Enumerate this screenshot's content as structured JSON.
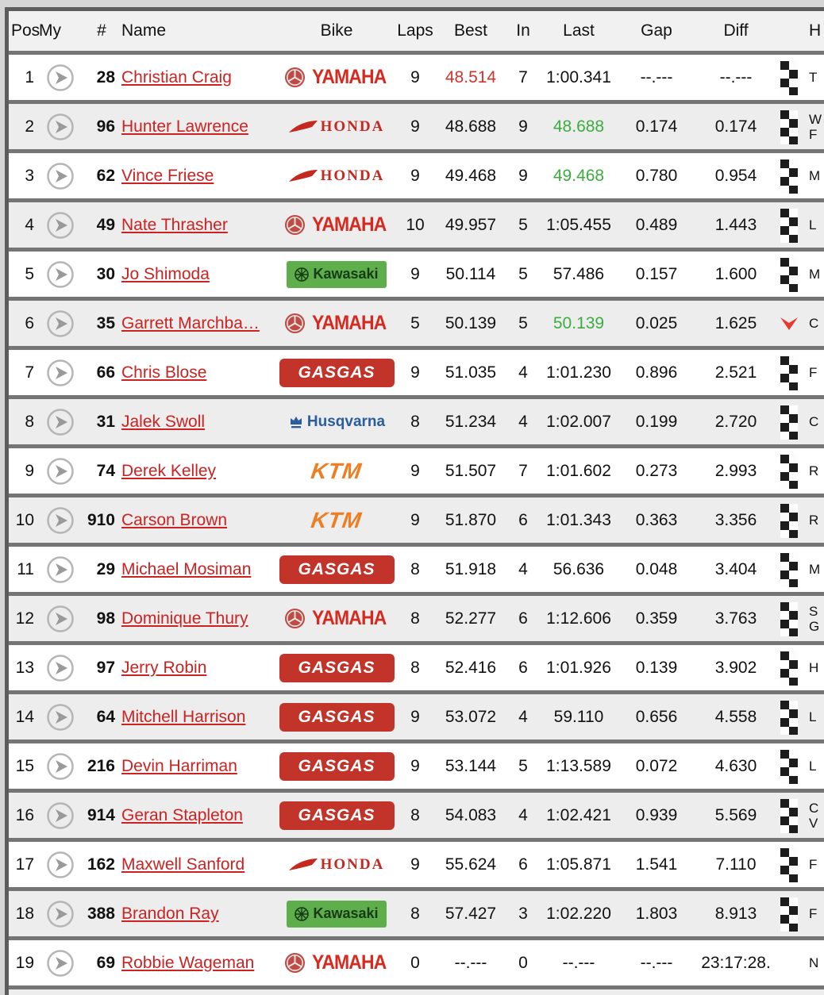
{
  "header": {
    "pos": "Pos",
    "my": "My",
    "num": "#",
    "name": "Name",
    "bike": "Bike",
    "laps": "Laps",
    "best": "Best",
    "in": "In",
    "last": "Last",
    "gap": "Gap",
    "diff": "Diff",
    "home": "H"
  },
  "brands": {
    "yamaha": {
      "label": "YAMAHA",
      "color": "#d62a20"
    },
    "honda": {
      "label": "HONDA",
      "color": "#c5281f"
    },
    "kawasaki": {
      "label": "Kawasaki",
      "color": "#5fae4c"
    },
    "gasgas": {
      "label": "GASGAS",
      "color": "#c2342a"
    },
    "husqvarna": {
      "label": "Husqvarna",
      "color": "#2b5c9e"
    },
    "ktm": {
      "label": "KTM",
      "color": "#ef7d23"
    }
  },
  "colors": {
    "link_red": "#cc2222",
    "best_overall_red": "#d0342c",
    "improved_green": "#3dac40",
    "row_alt": "#ededed",
    "separator": "#757575"
  },
  "icons": {
    "my_button": "arrow-right-icon",
    "finished": "checkered-flag-icon",
    "position_drop": "chevron-down-red-icon"
  },
  "table": {
    "rows": [
      {
        "pos": "1",
        "num": "28",
        "name": "Christian Craig",
        "bike": "yamaha",
        "laps": "9",
        "best": "48.514",
        "best_style": "red",
        "in": "7",
        "last": "1:00.341",
        "last_style": "",
        "gap": "--.---",
        "diff": "--.---",
        "flag": "checkered",
        "home": [
          "T"
        ]
      },
      {
        "pos": "2",
        "num": "96",
        "name": "Hunter Lawrence",
        "bike": "honda",
        "laps": "9",
        "best": "48.688",
        "best_style": "",
        "in": "9",
        "last": "48.688",
        "last_style": "green",
        "gap": "0.174",
        "diff": "0.174",
        "flag": "checkered",
        "home": [
          "W",
          "F"
        ]
      },
      {
        "pos": "3",
        "num": "62",
        "name": "Vince Friese",
        "bike": "honda",
        "laps": "9",
        "best": "49.468",
        "best_style": "",
        "in": "9",
        "last": "49.468",
        "last_style": "green",
        "gap": "0.780",
        "diff": "0.954",
        "flag": "checkered",
        "home": [
          "M"
        ]
      },
      {
        "pos": "4",
        "num": "49",
        "name": "Nate Thrasher",
        "bike": "yamaha",
        "laps": "10",
        "best": "49.957",
        "best_style": "",
        "in": "5",
        "last": "1:05.455",
        "last_style": "",
        "gap": "0.489",
        "diff": "1.443",
        "flag": "checkered",
        "home": [
          "L"
        ]
      },
      {
        "pos": "5",
        "num": "30",
        "name": "Jo Shimoda",
        "bike": "kawasaki",
        "laps": "9",
        "best": "50.114",
        "best_style": "",
        "in": "5",
        "last": "57.486",
        "last_style": "",
        "gap": "0.157",
        "diff": "1.600",
        "flag": "checkered",
        "home": [
          "M"
        ]
      },
      {
        "pos": "6",
        "num": "35",
        "name": "Garrett Marchba…",
        "bike": "yamaha",
        "laps": "5",
        "best": "50.139",
        "best_style": "",
        "in": "5",
        "last": "50.139",
        "last_style": "green",
        "gap": "0.025",
        "diff": "1.625",
        "flag": "arrow",
        "home": [
          "C"
        ]
      },
      {
        "pos": "7",
        "num": "66",
        "name": "Chris Blose",
        "bike": "gasgas",
        "laps": "9",
        "best": "51.035",
        "best_style": "",
        "in": "4",
        "last": "1:01.230",
        "last_style": "",
        "gap": "0.896",
        "diff": "2.521",
        "flag": "checkered",
        "home": [
          "F"
        ]
      },
      {
        "pos": "8",
        "num": "31",
        "name": "Jalek Swoll",
        "bike": "husqvarna",
        "laps": "8",
        "best": "51.234",
        "best_style": "",
        "in": "4",
        "last": "1:02.007",
        "last_style": "",
        "gap": "0.199",
        "diff": "2.720",
        "flag": "checkered",
        "home": [
          "C"
        ]
      },
      {
        "pos": "9",
        "num": "74",
        "name": "Derek Kelley",
        "bike": "ktm",
        "laps": "9",
        "best": "51.507",
        "best_style": "",
        "in": "7",
        "last": "1:01.602",
        "last_style": "",
        "gap": "0.273",
        "diff": "2.993",
        "flag": "checkered",
        "home": [
          "R"
        ]
      },
      {
        "pos": "10",
        "num": "910",
        "name": "Carson Brown",
        "bike": "ktm",
        "laps": "9",
        "best": "51.870",
        "best_style": "",
        "in": "6",
        "last": "1:01.343",
        "last_style": "",
        "gap": "0.363",
        "diff": "3.356",
        "flag": "checkered",
        "home": [
          "R"
        ]
      },
      {
        "pos": "11",
        "num": "29",
        "name": "Michael Mosiman",
        "bike": "gasgas",
        "laps": "8",
        "best": "51.918",
        "best_style": "",
        "in": "4",
        "last": "56.636",
        "last_style": "",
        "gap": "0.048",
        "diff": "3.404",
        "flag": "checkered",
        "home": [
          "M"
        ]
      },
      {
        "pos": "12",
        "num": "98",
        "name": "Dominique Thury",
        "bike": "yamaha",
        "laps": "8",
        "best": "52.277",
        "best_style": "",
        "in": "6",
        "last": "1:12.606",
        "last_style": "",
        "gap": "0.359",
        "diff": "3.763",
        "flag": "checkered",
        "home": [
          "S",
          "G"
        ]
      },
      {
        "pos": "13",
        "num": "97",
        "name": "Jerry Robin",
        "bike": "gasgas",
        "laps": "8",
        "best": "52.416",
        "best_style": "",
        "in": "6",
        "last": "1:01.926",
        "last_style": "",
        "gap": "0.139",
        "diff": "3.902",
        "flag": "checkered",
        "home": [
          "H"
        ]
      },
      {
        "pos": "14",
        "num": "64",
        "name": "Mitchell Harrison",
        "bike": "gasgas",
        "laps": "9",
        "best": "53.072",
        "best_style": "",
        "in": "4",
        "last": "59.110",
        "last_style": "",
        "gap": "0.656",
        "diff": "4.558",
        "flag": "checkered",
        "home": [
          "L"
        ]
      },
      {
        "pos": "15",
        "num": "216",
        "name": "Devin Harriman",
        "bike": "gasgas",
        "laps": "9",
        "best": "53.144",
        "best_style": "",
        "in": "5",
        "last": "1:13.589",
        "last_style": "",
        "gap": "0.072",
        "diff": "4.630",
        "flag": "checkered",
        "home": [
          "L"
        ]
      },
      {
        "pos": "16",
        "num": "914",
        "name": "Geran Stapleton",
        "bike": "gasgas",
        "laps": "8",
        "best": "54.083",
        "best_style": "",
        "in": "4",
        "last": "1:02.421",
        "last_style": "",
        "gap": "0.939",
        "diff": "5.569",
        "flag": "checkered",
        "home": [
          "C",
          "V"
        ]
      },
      {
        "pos": "17",
        "num": "162",
        "name": "Maxwell Sanford",
        "bike": "honda",
        "laps": "9",
        "best": "55.624",
        "best_style": "",
        "in": "6",
        "last": "1:05.871",
        "last_style": "",
        "gap": "1.541",
        "diff": "7.110",
        "flag": "checkered",
        "home": [
          "F"
        ]
      },
      {
        "pos": "18",
        "num": "388",
        "name": "Brandon Ray",
        "bike": "kawasaki",
        "laps": "8",
        "best": "57.427",
        "best_style": "",
        "in": "3",
        "last": "1:02.220",
        "last_style": "",
        "gap": "1.803",
        "diff": "8.913",
        "flag": "checkered",
        "home": [
          "F"
        ]
      },
      {
        "pos": "19",
        "num": "69",
        "name": "Robbie Wageman",
        "bike": "yamaha",
        "laps": "0",
        "best": "--.---",
        "best_style": "",
        "in": "0",
        "last": "--.---",
        "last_style": "",
        "gap": "--.---",
        "diff": "23:17:28.",
        "flag": "none",
        "home": [
          "N"
        ]
      }
    ]
  }
}
